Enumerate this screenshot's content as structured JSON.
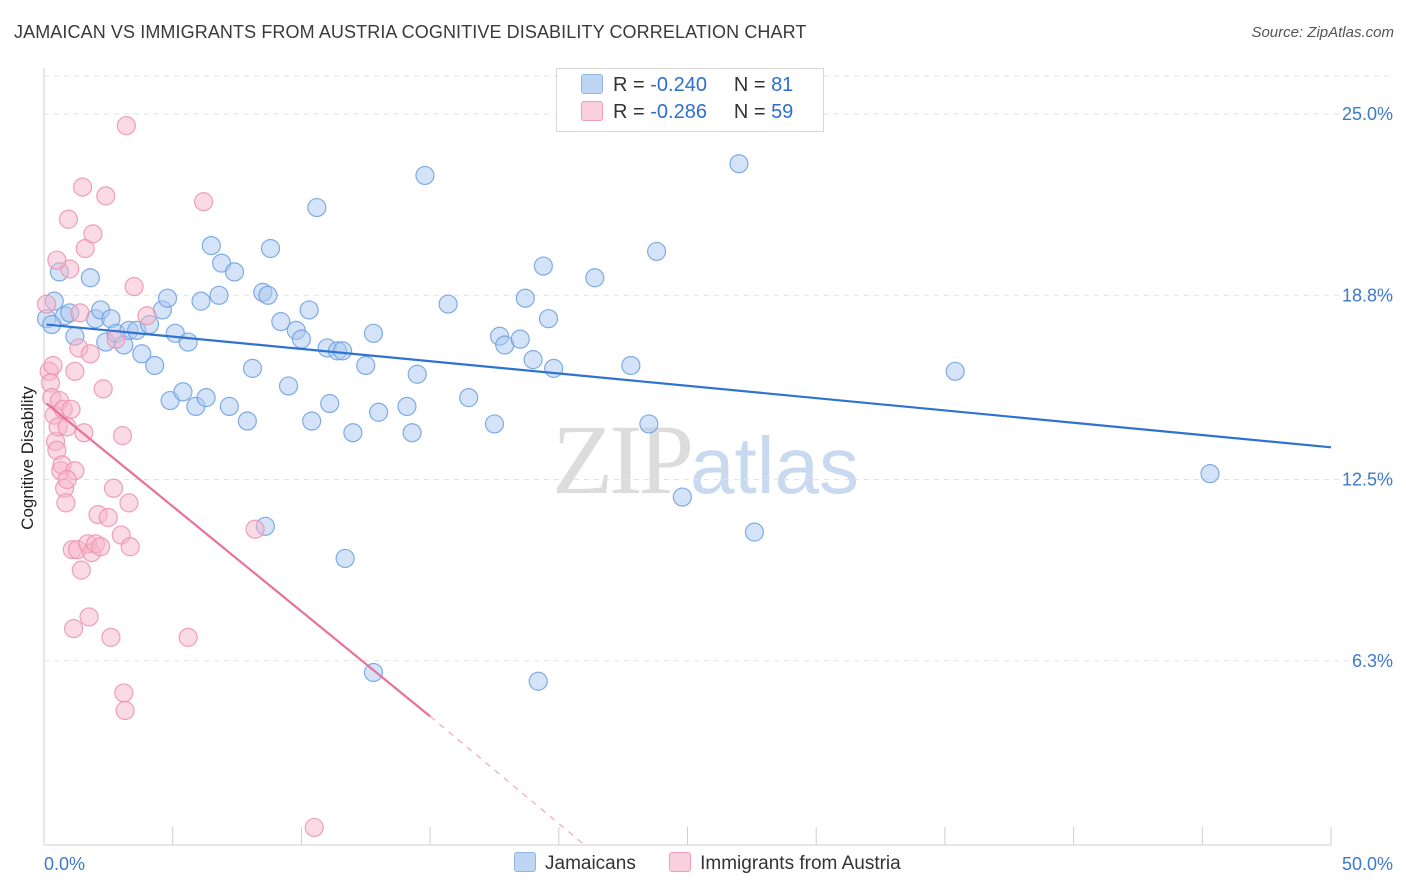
{
  "header": {
    "title": "JAMAICAN VS IMMIGRANTS FROM AUSTRIA COGNITIVE DISABILITY CORRELATION CHART",
    "source": "Source: ZipAtlas.com"
  },
  "watermark": {
    "zip": "ZIP",
    "atlas": "atlas"
  },
  "legend": {
    "rows": [
      {
        "r_label": "R =",
        "r_value": "-0.240",
        "n_label": "N =",
        "n_value": "81",
        "color": "#a9c7ef"
      },
      {
        "r_label": "R =",
        "r_value": "-0.286",
        "n_label": "N =",
        "n_value": "59",
        "color": "#f6b6ca"
      }
    ]
  },
  "bottom_legend": {
    "items": [
      {
        "label": "Jamaicans",
        "color": "#a9c7ef"
      },
      {
        "label": "Immigrants from Austria",
        "color": "#f6b6ca"
      }
    ]
  },
  "chart_data": {
    "type": "scatter",
    "title": "JAMAICAN VS IMMIGRANTS FROM AUSTRIA COGNITIVE DISABILITY CORRELATION CHART",
    "xlabel": "",
    "ylabel": "Cognitive Disability",
    "xlim": [
      0,
      50
    ],
    "ylim": [
      0,
      26.3
    ],
    "x_tick_labels": [
      "0.0%",
      "50.0%"
    ],
    "y_ticks": [
      6.3,
      12.5,
      18.8,
      25.0
    ],
    "y_tick_labels": [
      "6.3%",
      "12.5%",
      "18.8%",
      "25.0%"
    ],
    "grid": "horizontal dashed",
    "legend_position": "top-center",
    "series": [
      {
        "name": "Jamaicans",
        "color": "#6b9fe0",
        "fill": "#a9c7ef",
        "trend": {
          "x": [
            0.1,
            50
          ],
          "y": [
            17.8,
            13.6
          ]
        },
        "points": [
          [
            0.1,
            18.0
          ],
          [
            0.4,
            18.6
          ],
          [
            0.6,
            19.6
          ],
          [
            0.8,
            18.1
          ],
          [
            1.0,
            18.2
          ],
          [
            1.2,
            17.4
          ],
          [
            1.8,
            19.4
          ],
          [
            2.0,
            18.0
          ],
          [
            2.2,
            18.3
          ],
          [
            2.4,
            17.2
          ],
          [
            2.6,
            18.0
          ],
          [
            2.8,
            17.5
          ],
          [
            3.1,
            17.1
          ],
          [
            3.3,
            17.6
          ],
          [
            3.6,
            17.6
          ],
          [
            3.8,
            16.8
          ],
          [
            4.1,
            17.8
          ],
          [
            4.3,
            16.4
          ],
          [
            4.6,
            18.3
          ],
          [
            4.8,
            18.7
          ],
          [
            4.9,
            15.2
          ],
          [
            5.1,
            17.5
          ],
          [
            5.4,
            15.5
          ],
          [
            5.6,
            17.2
          ],
          [
            5.9,
            15.0
          ],
          [
            6.1,
            18.6
          ],
          [
            6.3,
            15.3
          ],
          [
            6.5,
            20.5
          ],
          [
            6.8,
            18.8
          ],
          [
            6.9,
            19.9
          ],
          [
            7.2,
            15.0
          ],
          [
            7.4,
            19.6
          ],
          [
            7.9,
            14.5
          ],
          [
            8.1,
            16.3
          ],
          [
            8.5,
            18.9
          ],
          [
            8.7,
            18.8
          ],
          [
            8.8,
            20.4
          ],
          [
            9.2,
            17.9
          ],
          [
            9.5,
            15.7
          ],
          [
            9.8,
            17.6
          ],
          [
            10.0,
            17.3
          ],
          [
            10.3,
            18.3
          ],
          [
            10.4,
            14.5
          ],
          [
            10.6,
            21.8
          ],
          [
            11.0,
            17.0
          ],
          [
            11.1,
            15.1
          ],
          [
            11.4,
            16.9
          ],
          [
            11.6,
            16.9
          ],
          [
            12.0,
            14.1
          ],
          [
            12.5,
            16.4
          ],
          [
            12.8,
            17.5
          ],
          [
            13.0,
            14.8
          ],
          [
            14.3,
            14.1
          ],
          [
            14.5,
            16.1
          ],
          [
            14.1,
            15.0
          ],
          [
            15.7,
            18.5
          ],
          [
            16.5,
            15.3
          ],
          [
            17.5,
            14.4
          ],
          [
            17.7,
            17.4
          ],
          [
            17.9,
            17.1
          ],
          [
            18.5,
            17.3
          ],
          [
            18.7,
            18.7
          ],
          [
            19.0,
            16.6
          ],
          [
            19.4,
            19.8
          ],
          [
            19.6,
            18.0
          ],
          [
            19.8,
            16.3
          ],
          [
            21.4,
            19.4
          ],
          [
            22.8,
            16.4
          ],
          [
            23.5,
            14.4
          ],
          [
            23.8,
            20.3
          ],
          [
            24.8,
            11.9
          ],
          [
            27.0,
            23.3
          ],
          [
            27.6,
            10.7
          ],
          [
            8.6,
            10.9
          ],
          [
            11.7,
            9.8
          ],
          [
            12.8,
            5.9
          ],
          [
            19.2,
            5.6
          ],
          [
            14.8,
            22.9
          ],
          [
            35.4,
            16.2
          ],
          [
            45.3,
            12.7
          ],
          [
            0.3,
            17.8
          ]
        ]
      },
      {
        "name": "Immigrants from Austria",
        "color": "#ee8fae",
        "fill": "#f6b6ca",
        "trend": {
          "x": [
            0.1,
            15.0
          ],
          "y": [
            15.1,
            4.4
          ]
        },
        "trend_extension": {
          "x": [
            15.0,
            21.0
          ],
          "y": [
            4.4,
            0.0
          ]
        },
        "points": [
          [
            0.1,
            18.5
          ],
          [
            0.2,
            16.2
          ],
          [
            0.25,
            15.8
          ],
          [
            0.3,
            15.3
          ],
          [
            0.35,
            16.4
          ],
          [
            0.4,
            14.7
          ],
          [
            0.45,
            13.8
          ],
          [
            0.5,
            13.5
          ],
          [
            0.55,
            14.3
          ],
          [
            0.6,
            15.2
          ],
          [
            0.65,
            12.8
          ],
          [
            0.7,
            13.0
          ],
          [
            0.75,
            14.9
          ],
          [
            0.8,
            12.2
          ],
          [
            0.85,
            11.7
          ],
          [
            0.9,
            14.3
          ],
          [
            0.95,
            21.4
          ],
          [
            1.0,
            19.7
          ],
          [
            1.05,
            14.9
          ],
          [
            1.1,
            10.1
          ],
          [
            1.15,
            7.4
          ],
          [
            1.2,
            12.8
          ],
          [
            1.3,
            10.1
          ],
          [
            1.35,
            17.0
          ],
          [
            1.4,
            18.2
          ],
          [
            1.45,
            9.4
          ],
          [
            1.5,
            22.5
          ],
          [
            1.55,
            14.1
          ],
          [
            1.6,
            20.4
          ],
          [
            1.7,
            10.3
          ],
          [
            1.75,
            7.8
          ],
          [
            1.8,
            16.8
          ],
          [
            1.85,
            10.0
          ],
          [
            1.9,
            20.9
          ],
          [
            2.0,
            10.3
          ],
          [
            2.1,
            11.3
          ],
          [
            2.2,
            10.2
          ],
          [
            2.3,
            15.6
          ],
          [
            2.4,
            22.2
          ],
          [
            2.5,
            11.2
          ],
          [
            2.6,
            7.1
          ],
          [
            2.7,
            12.2
          ],
          [
            2.8,
            17.3
          ],
          [
            3.0,
            10.6
          ],
          [
            3.05,
            14.0
          ],
          [
            3.1,
            5.2
          ],
          [
            3.15,
            4.6
          ],
          [
            3.3,
            11.7
          ],
          [
            3.35,
            10.2
          ],
          [
            3.5,
            19.1
          ],
          [
            4.0,
            18.1
          ],
          [
            5.6,
            7.1
          ],
          [
            6.2,
            22.0
          ],
          [
            8.2,
            10.8
          ],
          [
            10.5,
            0.6
          ],
          [
            0.5,
            20.0
          ],
          [
            1.2,
            16.2
          ],
          [
            0.9,
            12.5
          ],
          [
            3.2,
            24.6
          ]
        ]
      }
    ]
  }
}
